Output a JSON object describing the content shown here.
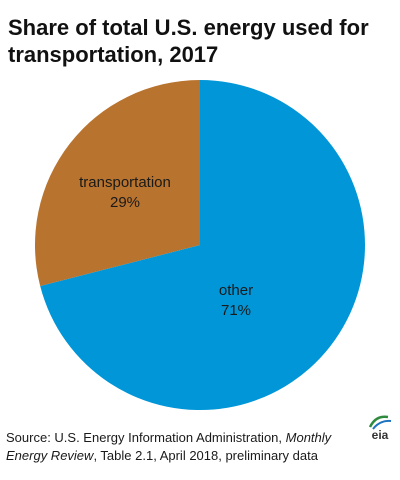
{
  "chart_data": {
    "type": "pie",
    "title": "Share of total U.S. energy used for transportation, 2017",
    "slices": [
      {
        "name": "other",
        "value": 71,
        "label": "71%",
        "color": "#0096D7"
      },
      {
        "name": "transportation",
        "value": 29,
        "label": "29%",
        "color": "#B8732E"
      }
    ],
    "start_angle_deg": 0,
    "direction": "clockwise"
  },
  "source": {
    "prefix": "Source: U.S. Energy Information Administration, ",
    "italic": "Monthly Energy Review",
    "suffix": ", Table 2.1, April 2018, preliminary data"
  },
  "logo": {
    "text": "eia",
    "colors": [
      "#2E8B3D",
      "#F5A623",
      "#1E73BE"
    ]
  }
}
